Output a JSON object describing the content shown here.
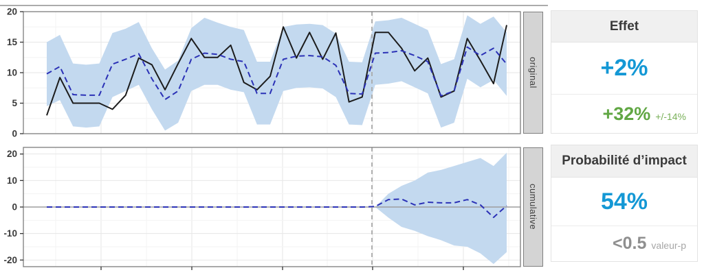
{
  "colors": {
    "accent_blue": "#1498d5",
    "positive_green": "#61a744",
    "band_blue": "#c3d9ef",
    "predicted_blue": "#2b31b6",
    "observed_black": "#1c1c1c",
    "intervention_gray": "#a9a9a9",
    "zero_line_gray": "#9e9e9e",
    "panel_border": "#7d7d7d",
    "grid_major": "#e6e6e6",
    "grid_minor": "#f3f3f3",
    "tick_label": "#3a3a3a",
    "strip_bg": "#d4d4d4"
  },
  "panels": {
    "original_label": "original",
    "cumulative_label": "cumulative"
  },
  "chart_data": [
    {
      "type": "line",
      "panel_label": "original",
      "title": "",
      "xlabel": "",
      "ylabel": "",
      "legend": "none",
      "grid": true,
      "ylim": [
        0,
        20
      ],
      "yticks": [
        0,
        5,
        10,
        15,
        20
      ],
      "x": [
        1,
        2,
        3,
        4,
        5,
        6,
        7,
        8,
        9,
        10,
        11,
        12,
        13,
        14,
        15,
        16,
        17,
        18,
        19,
        20,
        21,
        22,
        23,
        24,
        25,
        26,
        27,
        28,
        29,
        30,
        31,
        32,
        33,
        34,
        35,
        36
      ],
      "intervention_index": 25,
      "series": [
        {
          "name": "observed",
          "style": "solid-black",
          "values": [
            3.0,
            9.2,
            5.0,
            5.0,
            5.0,
            4.0,
            6.3,
            12.4,
            11.3,
            7.2,
            11.5,
            15.6,
            12.5,
            12.5,
            14.5,
            8.4,
            7.2,
            9.4,
            17.5,
            12.4,
            16.6,
            12.2,
            16.5,
            5.2,
            6.0,
            16.6,
            16.6,
            14.0,
            10.3,
            12.4,
            6.0,
            7.0,
            15.6,
            12.0,
            8.2,
            17.8
          ]
        },
        {
          "name": "predicted",
          "style": "dashed-blue",
          "values": [
            9.8,
            11.0,
            6.4,
            6.3,
            6.3,
            11.4,
            12.2,
            13.1,
            9.0,
            5.6,
            7.0,
            12.2,
            13.2,
            13.0,
            12.2,
            11.8,
            6.6,
            6.6,
            12.2,
            12.7,
            12.8,
            12.6,
            11.2,
            6.6,
            6.5,
            13.2,
            13.3,
            13.6,
            12.8,
            11.8,
            6.2,
            7.0,
            14.2,
            12.8,
            14.0,
            11.4
          ]
        }
      ],
      "band": {
        "name": "95%-credible-interval",
        "lower": [
          4.5,
          5.5,
          1.2,
          1.0,
          1.2,
          6.0,
          7.0,
          8.0,
          4.0,
          0.5,
          1.8,
          7.0,
          8.0,
          8.0,
          7.2,
          6.8,
          1.5,
          1.5,
          7.0,
          7.5,
          7.6,
          7.4,
          6.0,
          1.5,
          1.4,
          8.0,
          8.2,
          8.6,
          7.6,
          6.6,
          1.0,
          1.8,
          9.0,
          7.6,
          8.8,
          6.2
        ],
        "upper": [
          15.0,
          16.2,
          11.5,
          11.3,
          11.5,
          16.5,
          17.2,
          18.3,
          14.0,
          10.5,
          12.0,
          17.3,
          19.0,
          18.2,
          17.5,
          17.0,
          11.8,
          11.8,
          17.5,
          17.9,
          18.0,
          17.8,
          16.4,
          11.8,
          11.7,
          18.4,
          18.6,
          19.0,
          18.0,
          17.0,
          11.4,
          12.2,
          19.4,
          18.0,
          19.2,
          16.6
        ]
      }
    },
    {
      "type": "line",
      "panel_label": "cumulative",
      "title": "",
      "xlabel": "",
      "ylabel": "",
      "legend": "none",
      "grid": true,
      "ylim": [
        -22.5,
        22.5
      ],
      "yticks": [
        -20,
        -10,
        0,
        10,
        20
      ],
      "x": [
        1,
        2,
        3,
        4,
        5,
        6,
        7,
        8,
        9,
        10,
        11,
        12,
        13,
        14,
        15,
        16,
        17,
        18,
        19,
        20,
        21,
        22,
        23,
        24,
        25,
        26,
        27,
        28,
        29,
        30,
        31,
        32,
        33,
        34,
        35,
        36
      ],
      "intervention_index": 25,
      "zero_line": true,
      "series": [
        {
          "name": "cumulative-effect",
          "style": "dashed-blue",
          "values": [
            0,
            0,
            0,
            0,
            0,
            0,
            0,
            0,
            0,
            0,
            0,
            0,
            0,
            0,
            0,
            0,
            0,
            0,
            0,
            0,
            0,
            0,
            0,
            0,
            0,
            0.2,
            2.8,
            3.0,
            0.8,
            1.8,
            1.6,
            1.6,
            2.8,
            0.8,
            -3.9,
            0.5
          ]
        }
      ],
      "band": {
        "name": "95%-credible-interval",
        "lower": [
          0,
          0,
          0,
          0,
          0,
          0,
          0,
          0,
          0,
          0,
          0,
          0,
          0,
          0,
          0,
          0,
          0,
          0,
          0,
          0,
          0,
          0,
          0,
          0,
          0,
          0.0,
          -4.0,
          -7.5,
          -9.0,
          -11.0,
          -12.5,
          -14.5,
          -15.0,
          -17.5,
          -21.5,
          -17.0
        ],
        "upper": [
          0,
          0,
          0,
          0,
          0,
          0,
          0,
          0,
          0,
          0,
          0,
          0,
          0,
          0,
          0,
          0,
          0,
          0,
          0,
          0,
          0,
          0,
          0,
          0,
          0,
          0.0,
          5.0,
          8.0,
          10.0,
          13.0,
          14.0,
          15.5,
          17.0,
          18.5,
          15.5,
          20.5
        ]
      }
    }
  ],
  "cards": {
    "effect": {
      "title": "Effet",
      "value": "+2%",
      "secondary": "+32%",
      "secondary_suffix": "+/-14%"
    },
    "probability": {
      "title": "Probabilité d’impact",
      "value": "54%",
      "secondary": "<0.5",
      "secondary_suffix": "valeur-p"
    }
  }
}
